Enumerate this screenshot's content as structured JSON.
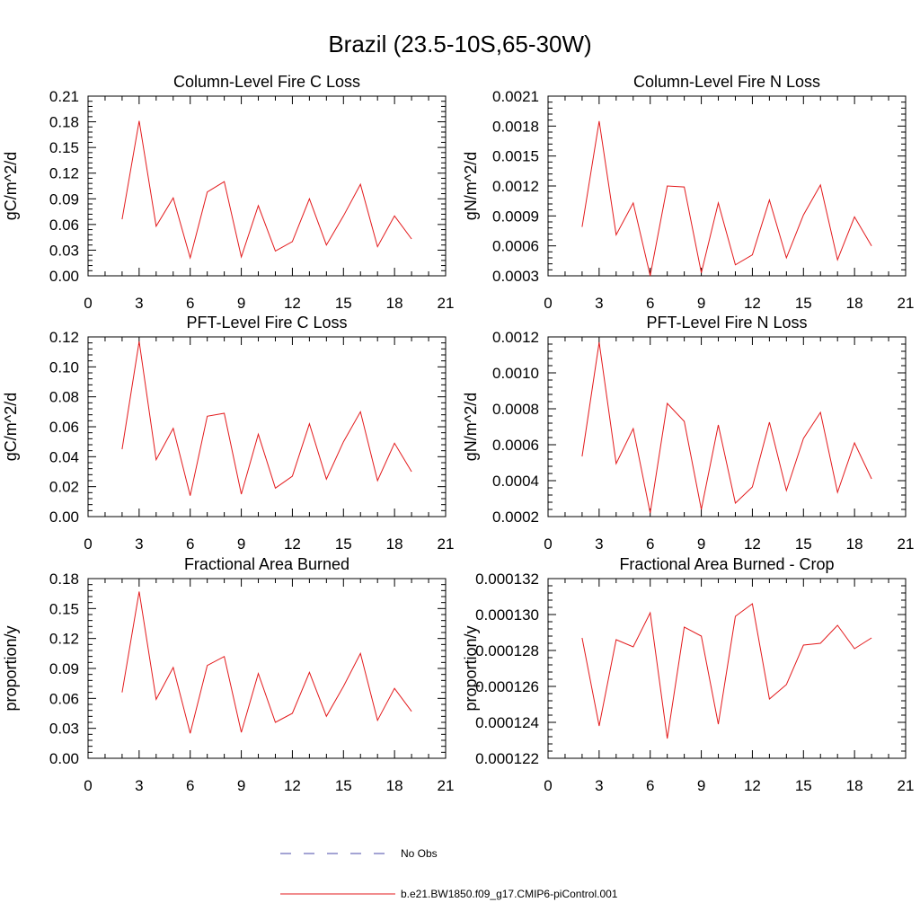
{
  "figure": {
    "title": "Brazil (23.5-10S,65-30W)"
  },
  "legend": {
    "entries": [
      {
        "label": "No Obs",
        "color": "#4a4aa8",
        "style": "dashed"
      },
      {
        "label": "b.e21.BW1850.f09_g17.CMIP6-piControl.001",
        "color": "#e31a1c",
        "style": "solid"
      }
    ]
  },
  "chart_data": [
    {
      "type": "line",
      "title": "Column-Level Fire C Loss",
      "xlabel": "",
      "ylabel": "gC/m^2/d",
      "xlim": [
        0,
        21
      ],
      "ylim": [
        0.0,
        0.21
      ],
      "xticks": [
        "0",
        "3",
        "6",
        "9",
        "12",
        "15",
        "18",
        "21"
      ],
      "yticks": [
        "0.00",
        "0.03",
        "0.06",
        "0.09",
        "0.12",
        "0.15",
        "0.18",
        "0.21"
      ],
      "series": [
        {
          "name": "b.e21.BW1850.f09_g17.CMIP6-piControl.001",
          "color": "#e31a1c",
          "x": [
            2,
            3,
            4,
            5,
            6,
            7,
            8,
            9,
            10,
            11,
            12,
            13,
            14,
            15,
            16,
            17,
            18,
            19
          ],
          "y": [
            0.066,
            0.181,
            0.058,
            0.091,
            0.021,
            0.098,
            0.11,
            0.022,
            0.082,
            0.029,
            0.04,
            0.09,
            0.036,
            0.07,
            0.107,
            0.034,
            0.07,
            0.043
          ]
        }
      ]
    },
    {
      "type": "line",
      "title": "Column-Level Fire N Loss",
      "xlabel": "",
      "ylabel": "gN/m^2/d",
      "xlim": [
        0,
        21
      ],
      "ylim": [
        0.0003,
        0.0021
      ],
      "xticks": [
        "0",
        "3",
        "6",
        "9",
        "12",
        "15",
        "18",
        "21"
      ],
      "yticks": [
        "0.0003",
        "0.0006",
        "0.0009",
        "0.0012",
        "0.0015",
        "0.0018",
        "0.0021"
      ],
      "series": [
        {
          "name": "b.e21.BW1850.f09_g17.CMIP6-piControl.001",
          "color": "#e31a1c",
          "x": [
            2,
            3,
            4,
            5,
            6,
            7,
            8,
            9,
            10,
            11,
            12,
            13,
            14,
            15,
            16,
            17,
            18,
            19
          ],
          "y": [
            0.00079,
            0.00185,
            0.00071,
            0.00103,
            0.0003,
            0.0012,
            0.00119,
            0.00033,
            0.00103,
            0.00041,
            0.00051,
            0.00106,
            0.00048,
            0.00091,
            0.00121,
            0.00046,
            0.00089,
            0.0006
          ]
        }
      ]
    },
    {
      "type": "line",
      "title": "PFT-Level Fire C Loss",
      "xlabel": "",
      "ylabel": "gC/m^2/d",
      "xlim": [
        0,
        21
      ],
      "ylim": [
        0.0,
        0.12
      ],
      "xticks": [
        "0",
        "3",
        "6",
        "9",
        "12",
        "15",
        "18",
        "21"
      ],
      "yticks": [
        "0.00",
        "0.02",
        "0.04",
        "0.06",
        "0.08",
        "0.10",
        "0.12"
      ],
      "series": [
        {
          "name": "b.e21.BW1850.f09_g17.CMIP6-piControl.001",
          "color": "#e31a1c",
          "x": [
            2,
            3,
            4,
            5,
            6,
            7,
            8,
            9,
            10,
            11,
            12,
            13,
            14,
            15,
            16,
            17,
            18,
            19
          ],
          "y": [
            0.045,
            0.117,
            0.038,
            0.059,
            0.014,
            0.067,
            0.069,
            0.015,
            0.055,
            0.019,
            0.027,
            0.062,
            0.025,
            0.05,
            0.07,
            0.024,
            0.049,
            0.03
          ]
        }
      ]
    },
    {
      "type": "line",
      "title": "PFT-Level Fire N Loss",
      "xlabel": "",
      "ylabel": "gN/m^2/d",
      "xlim": [
        0,
        21
      ],
      "ylim": [
        0.0002,
        0.0012
      ],
      "xticks": [
        "0",
        "3",
        "6",
        "9",
        "12",
        "15",
        "18",
        "21"
      ],
      "yticks": [
        "0.0002",
        "0.0004",
        "0.0006",
        "0.0008",
        "0.0010",
        "0.0012"
      ],
      "series": [
        {
          "name": "b.e21.BW1850.f09_g17.CMIP6-piControl.001",
          "color": "#e31a1c",
          "x": [
            2,
            3,
            4,
            5,
            6,
            7,
            8,
            9,
            10,
            11,
            12,
            13,
            14,
            15,
            16,
            17,
            18,
            19
          ],
          "y": [
            0.000535,
            0.00117,
            0.000495,
            0.00069,
            0.00022,
            0.00083,
            0.00073,
            0.00024,
            0.00071,
            0.000275,
            0.000365,
            0.000725,
            0.000345,
            0.000635,
            0.00078,
            0.000335,
            0.00061,
            0.00041
          ]
        }
      ]
    },
    {
      "type": "line",
      "title": "Fractional Area Burned",
      "xlabel": "",
      "ylabel": "proportion/y",
      "xlim": [
        0,
        21
      ],
      "ylim": [
        0.0,
        0.18
      ],
      "xticks": [
        "0",
        "3",
        "6",
        "9",
        "12",
        "15",
        "18",
        "21"
      ],
      "yticks": [
        "0.00",
        "0.03",
        "0.06",
        "0.09",
        "0.12",
        "0.15",
        "0.18"
      ],
      "series": [
        {
          "name": "b.e21.BW1850.f09_g17.CMIP6-piControl.001",
          "color": "#e31a1c",
          "x": [
            2,
            3,
            4,
            5,
            6,
            7,
            8,
            9,
            10,
            11,
            12,
            13,
            14,
            15,
            16,
            17,
            18,
            19
          ],
          "y": [
            0.066,
            0.167,
            0.059,
            0.091,
            0.025,
            0.093,
            0.102,
            0.026,
            0.085,
            0.036,
            0.045,
            0.086,
            0.042,
            0.072,
            0.105,
            0.038,
            0.07,
            0.047
          ]
        }
      ]
    },
    {
      "type": "line",
      "title": "Fractional Area Burned - Crop",
      "xlabel": "",
      "ylabel": "proportion/y",
      "xlim": [
        0,
        21
      ],
      "ylim": [
        0.000122,
        0.000132
      ],
      "xticks": [
        "0",
        "3",
        "6",
        "9",
        "12",
        "15",
        "18",
        "21"
      ],
      "yticks": [
        "0.000122",
        "0.000124",
        "0.000126",
        "0.000128",
        "0.000130",
        "0.000132"
      ],
      "series": [
        {
          "name": "b.e21.BW1850.f09_g17.CMIP6-piControl.001",
          "color": "#e31a1c",
          "x": [
            2,
            3,
            4,
            5,
            6,
            7,
            8,
            9,
            10,
            11,
            12,
            13,
            14,
            15,
            16,
            17,
            18,
            19
          ],
          "y": [
            0.0001287,
            0.0001238,
            0.0001286,
            0.0001282,
            0.0001301,
            0.0001231,
            0.0001293,
            0.0001288,
            0.0001239,
            0.0001299,
            0.0001306,
            0.0001253,
            0.0001261,
            0.0001283,
            0.0001284,
            0.0001294,
            0.0001281,
            0.0001287
          ]
        }
      ]
    }
  ]
}
